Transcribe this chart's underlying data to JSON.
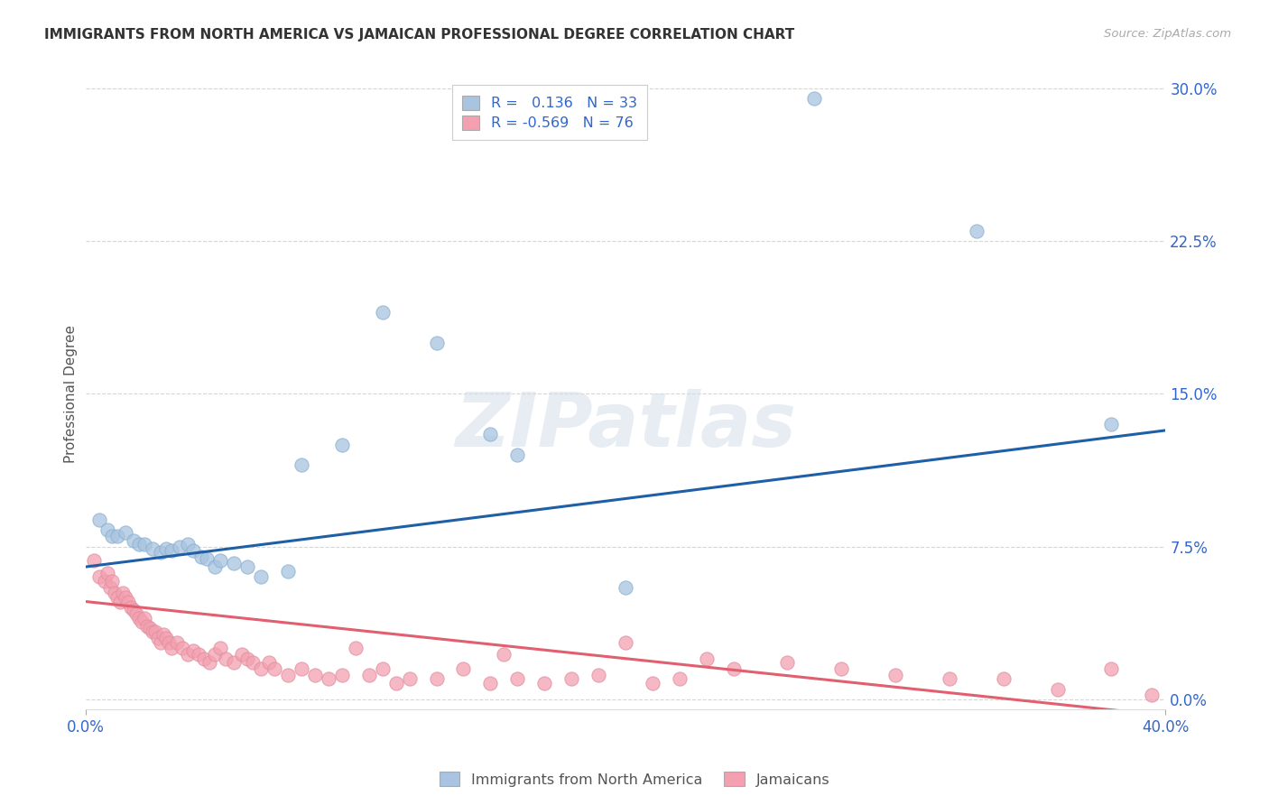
{
  "title": "IMMIGRANTS FROM NORTH AMERICA VS JAMAICAN PROFESSIONAL DEGREE CORRELATION CHART",
  "source": "Source: ZipAtlas.com",
  "ylabel": "Professional Degree",
  "xlim": [
    0.0,
    0.4
  ],
  "ylim": [
    -0.005,
    0.305
  ],
  "ytick_labels": [
    "0.0%",
    "7.5%",
    "15.0%",
    "22.5%",
    "30.0%"
  ],
  "ytick_values": [
    0.0,
    0.075,
    0.15,
    0.225,
    0.3
  ],
  "watermark": "ZIPatlas",
  "blue_R": 0.136,
  "blue_N": 33,
  "pink_R": -0.569,
  "pink_N": 76,
  "blue_color": "#a8c4e0",
  "pink_color": "#f4a0b0",
  "blue_line_color": "#1f5fa6",
  "pink_line_color": "#e06070",
  "title_color": "#333333",
  "axis_color": "#3366cc",
  "grid_color": "#cccccc",
  "background_color": "#ffffff",
  "blue_x": [
    0.005,
    0.008,
    0.01,
    0.012,
    0.015,
    0.018,
    0.02,
    0.022,
    0.025,
    0.028,
    0.03,
    0.032,
    0.035,
    0.038,
    0.04,
    0.043,
    0.045,
    0.048,
    0.05,
    0.055,
    0.06,
    0.065,
    0.075,
    0.08,
    0.095,
    0.11,
    0.13,
    0.15,
    0.16,
    0.2,
    0.27,
    0.33,
    0.38
  ],
  "blue_y": [
    0.088,
    0.083,
    0.08,
    0.08,
    0.082,
    0.078,
    0.076,
    0.076,
    0.074,
    0.072,
    0.074,
    0.073,
    0.075,
    0.076,
    0.073,
    0.07,
    0.069,
    0.065,
    0.068,
    0.067,
    0.065,
    0.06,
    0.063,
    0.115,
    0.125,
    0.19,
    0.175,
    0.13,
    0.12,
    0.055,
    0.295,
    0.23,
    0.135
  ],
  "pink_x": [
    0.003,
    0.005,
    0.007,
    0.008,
    0.009,
    0.01,
    0.011,
    0.012,
    0.013,
    0.014,
    0.015,
    0.016,
    0.017,
    0.018,
    0.019,
    0.02,
    0.021,
    0.022,
    0.023,
    0.024,
    0.025,
    0.026,
    0.027,
    0.028,
    0.029,
    0.03,
    0.031,
    0.032,
    0.034,
    0.036,
    0.038,
    0.04,
    0.042,
    0.044,
    0.046,
    0.048,
    0.05,
    0.052,
    0.055,
    0.058,
    0.06,
    0.062,
    0.065,
    0.068,
    0.07,
    0.075,
    0.08,
    0.085,
    0.09,
    0.095,
    0.1,
    0.105,
    0.11,
    0.115,
    0.12,
    0.13,
    0.14,
    0.15,
    0.155,
    0.16,
    0.17,
    0.18,
    0.19,
    0.2,
    0.21,
    0.22,
    0.23,
    0.24,
    0.26,
    0.28,
    0.3,
    0.32,
    0.34,
    0.36,
    0.38,
    0.395
  ],
  "pink_y": [
    0.068,
    0.06,
    0.058,
    0.062,
    0.055,
    0.058,
    0.052,
    0.05,
    0.048,
    0.052,
    0.05,
    0.048,
    0.045,
    0.044,
    0.042,
    0.04,
    0.038,
    0.04,
    0.036,
    0.035,
    0.033,
    0.033,
    0.03,
    0.028,
    0.032,
    0.03,
    0.028,
    0.025,
    0.028,
    0.025,
    0.022,
    0.024,
    0.022,
    0.02,
    0.018,
    0.022,
    0.025,
    0.02,
    0.018,
    0.022,
    0.02,
    0.018,
    0.015,
    0.018,
    0.015,
    0.012,
    0.015,
    0.012,
    0.01,
    0.012,
    0.025,
    0.012,
    0.015,
    0.008,
    0.01,
    0.01,
    0.015,
    0.008,
    0.022,
    0.01,
    0.008,
    0.01,
    0.012,
    0.028,
    0.008,
    0.01,
    0.02,
    0.015,
    0.018,
    0.015,
    0.012,
    0.01,
    0.01,
    0.005,
    0.015,
    0.002
  ],
  "blue_line_x0": 0.0,
  "blue_line_y0": 0.065,
  "blue_line_x1": 0.4,
  "blue_line_y1": 0.132,
  "pink_line_x0": 0.0,
  "pink_line_y0": 0.048,
  "pink_line_x1": 0.4,
  "pink_line_y1": -0.008
}
